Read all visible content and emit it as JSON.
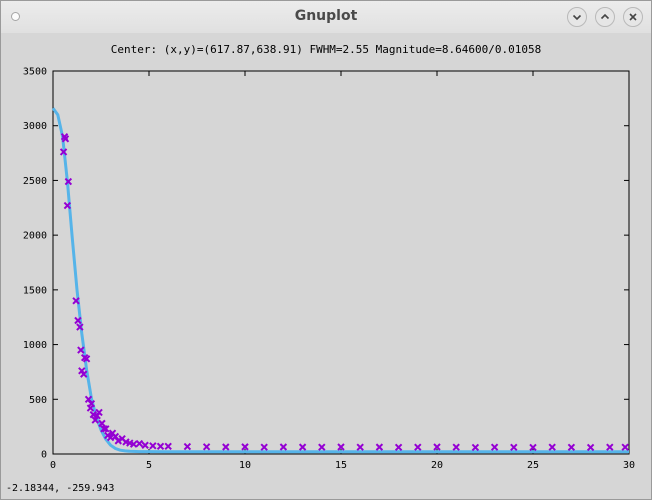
{
  "window": {
    "title": "Gnuplot",
    "buttons": [
      {
        "name": "minimize",
        "icon": "chevron-down-icon"
      },
      {
        "name": "maximize",
        "icon": "chevron-up-icon"
      },
      {
        "name": "close",
        "icon": "close-icon"
      }
    ]
  },
  "status": {
    "coordinates": "-2.18344, -259.943"
  },
  "colors": {
    "points": "#9400d3",
    "fit_curve": "#56b4e9",
    "plot_background": "#d6d6d6"
  },
  "chart_data": {
    "type": "scatter",
    "title": "Center: (x,y)=(617.87,638.91) FWHM=2.55 Magnitude=8.64600/0.01058",
    "xlabel": "",
    "ylabel": "",
    "xlim": [
      0,
      30
    ],
    "ylim": [
      0,
      3500
    ],
    "xticks": [
      0,
      5,
      10,
      15,
      20,
      25,
      30
    ],
    "yticks": [
      0,
      500,
      1000,
      1500,
      2000,
      2500,
      3000,
      3500
    ],
    "grid": false,
    "legend": "none",
    "series": [
      {
        "kind": "points",
        "x": [
          0.55,
          0.6,
          0.65,
          0.75,
          0.8,
          1.2,
          1.3,
          1.4,
          1.45,
          1.5,
          1.6,
          1.65,
          1.75,
          1.85,
          1.95,
          2.0,
          2.1,
          2.2,
          2.3,
          2.4,
          2.55,
          2.65,
          2.75,
          2.85,
          3.0,
          3.1,
          3.25,
          3.4,
          3.6,
          3.8,
          4.0,
          4.2,
          4.5,
          4.8,
          5.2,
          5.6,
          6.0,
          7,
          8,
          9,
          10,
          11,
          12,
          13,
          14,
          15,
          16,
          17,
          18,
          19,
          20,
          21,
          22,
          23,
          24,
          25,
          26,
          27,
          28,
          29,
          29.8
        ],
        "y": [
          2760,
          2900,
          2880,
          2270,
          2490,
          1400,
          1220,
          1160,
          950,
          760,
          730,
          880,
          870,
          500,
          420,
          460,
          360,
          310,
          350,
          380,
          280,
          230,
          230,
          170,
          150,
          190,
          160,
          120,
          140,
          110,
          100,
          90,
          95,
          80,
          75,
          70,
          70,
          68,
          66,
          64,
          65,
          62,
          64,
          63,
          62,
          64,
          62,
          63,
          61,
          62,
          64,
          62,
          60,
          62,
          61,
          60,
          62,
          61,
          60,
          62,
          62
        ]
      },
      {
        "kind": "fit-line",
        "x": [
          0,
          0.25,
          0.5,
          0.75,
          1.0,
          1.25,
          1.5,
          1.75,
          2.0,
          2.25,
          2.5,
          2.75,
          3.0,
          3.25,
          3.5,
          3.75,
          4.0,
          4.5,
          5.0,
          6,
          8,
          10,
          15,
          20,
          25,
          30
        ],
        "y": [
          3160,
          3100,
          2900,
          2490,
          1980,
          1500,
          1100,
          770,
          510,
          340,
          220,
          135,
          80,
          50,
          35,
          28,
          25,
          22,
          22,
          21,
          20,
          20,
          20,
          20,
          20,
          20
        ]
      }
    ]
  }
}
